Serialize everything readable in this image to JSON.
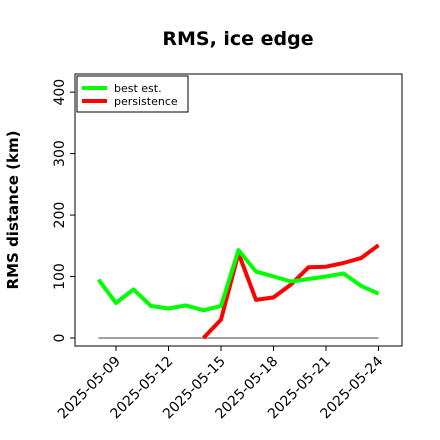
{
  "chart_data": {
    "type": "line",
    "title": "RMS, ice edge",
    "ylabel": "RMS distance (km)",
    "xlabel": "",
    "ylim": [
      -10,
      410
    ],
    "xlim": [
      "2025-05-07",
      "2025-05-25"
    ],
    "yticks": [
      "0",
      "100",
      "200",
      "300",
      "400"
    ],
    "xticks": [
      "2025-05-09",
      "2025-05-12",
      "2025-05-15",
      "2025-05-18",
      "2025-05-21",
      "2025-05-24"
    ],
    "grid": false,
    "legend_position": "top-left",
    "series": [
      {
        "name": "best est.",
        "color": "#00ff00",
        "x": [
          "2025-05-08",
          "2025-05-09",
          "2025-05-10",
          "2025-05-11",
          "2025-05-12",
          "2025-05-13",
          "2025-05-14",
          "2025-05-15",
          "2025-05-16",
          "2025-05-17",
          "2025-05-18",
          "2025-05-19",
          "2025-05-20",
          "2025-05-21",
          "2025-05-22",
          "2025-05-23",
          "2025-05-24"
        ],
        "values": [
          95,
          57,
          79,
          52,
          48,
          53,
          45,
          52,
          143,
          108,
          100,
          92,
          96,
          100,
          105,
          85,
          72
        ]
      },
      {
        "name": "persistence",
        "color": "#ff0000",
        "x": [
          "2025-05-14",
          "2025-05-15",
          "2025-05-16",
          "2025-05-17",
          "2025-05-18",
          "2025-05-19",
          "2025-05-20",
          "2025-05-21",
          "2025-05-22",
          "2025-05-23",
          "2025-05-24"
        ],
        "values": [
          0,
          30,
          138,
          62,
          66,
          87,
          115,
          116,
          122,
          130,
          151
        ]
      }
    ],
    "baseline": {
      "color": "#808080",
      "x": [
        "2025-05-08",
        "2025-05-24"
      ],
      "value": 0
    }
  }
}
